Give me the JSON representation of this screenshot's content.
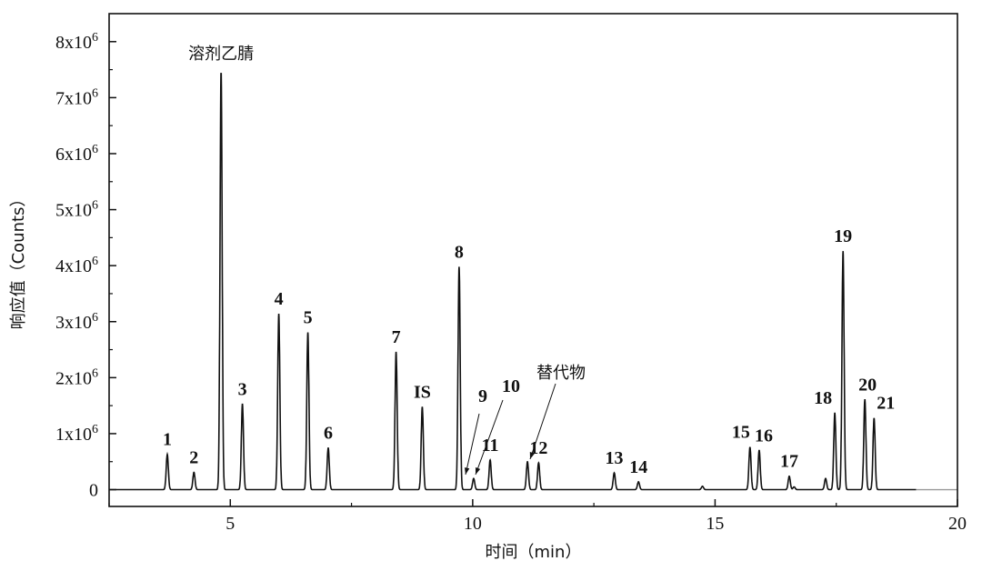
{
  "chart_data": {
    "type": "line",
    "title": "",
    "xlabel": "时间（min）",
    "ylabel": "响应值（Counts）",
    "xlim": [
      2.5,
      20
    ],
    "ylim": [
      -300000,
      8500000
    ],
    "xticks": [
      5,
      10,
      15,
      20
    ],
    "xtick_labels": [
      "5",
      "10",
      "15",
      "20"
    ],
    "yticks": [
      0,
      1000000,
      2000000,
      3000000,
      4000000,
      5000000,
      6000000,
      7000000,
      8000000
    ],
    "ytick_labels": [
      "0",
      "1x10^6",
      "2x10^6",
      "3x10^6",
      "4x10^6",
      "5x10^6",
      "6x10^6",
      "7x10^6",
      "8x10^6"
    ],
    "grid": false,
    "line_color": "#111111",
    "peaks": [
      {
        "time": 3.7,
        "height": 630000,
        "label": "1"
      },
      {
        "time": 4.25,
        "height": 310000,
        "label": "2"
      },
      {
        "time": 4.81,
        "height": 7460000,
        "label": "溶剂乙腈"
      },
      {
        "time": 5.25,
        "height": 1530000,
        "label": "3"
      },
      {
        "time": 6.0,
        "height": 3140000,
        "label": "4"
      },
      {
        "time": 6.6,
        "height": 2810000,
        "label": "5"
      },
      {
        "time": 7.02,
        "height": 750000,
        "label": "6"
      },
      {
        "time": 8.42,
        "height": 2460000,
        "label": "7"
      },
      {
        "time": 8.96,
        "height": 1480000,
        "label": "IS"
      },
      {
        "time": 9.72,
        "height": 3980000,
        "label": "8"
      },
      {
        "time": 10.02,
        "height": 200000,
        "label": "9"
      },
      {
        "time": 10.36,
        "height": 530000,
        "label": "11"
      },
      {
        "time": 11.13,
        "height": 500000,
        "label": "替代物"
      },
      {
        "time": 11.36,
        "height": 480000,
        "label": "12"
      },
      {
        "time": 12.92,
        "height": 300000,
        "label": "13"
      },
      {
        "time": 13.42,
        "height": 140000,
        "label": "14"
      },
      {
        "time": 14.74,
        "height": 60000,
        "label": ""
      },
      {
        "time": 15.72,
        "height": 760000,
        "label": "15"
      },
      {
        "time": 15.91,
        "height": 700000,
        "label": "16"
      },
      {
        "time": 16.53,
        "height": 240000,
        "label": "17"
      },
      {
        "time": 16.63,
        "height": 50000,
        "label": ""
      },
      {
        "time": 17.28,
        "height": 200000,
        "label": ""
      },
      {
        "time": 17.47,
        "height": 1370000,
        "label": "18"
      },
      {
        "time": 17.64,
        "height": 4260000,
        "label": "19"
      },
      {
        "time": 18.09,
        "height": 1610000,
        "label": "20"
      },
      {
        "time": 18.28,
        "height": 1280000,
        "label": "21"
      }
    ],
    "annotations": [
      {
        "label": "9",
        "points_to": 10.0
      },
      {
        "label": "10",
        "points_to": 10.05
      },
      {
        "label": "替代物",
        "points_to": 11.13
      }
    ]
  }
}
